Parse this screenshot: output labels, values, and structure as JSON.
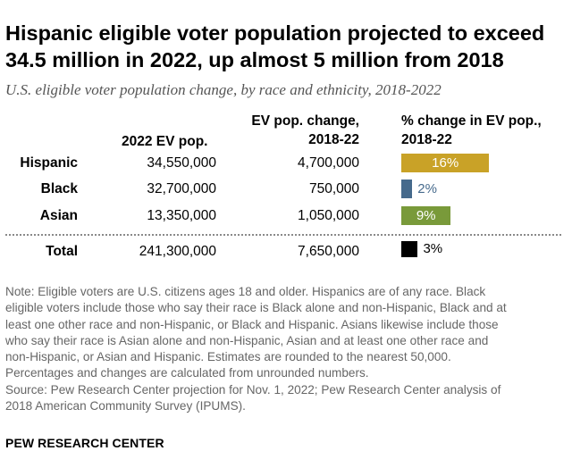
{
  "title_line1": "Hispanic eligible voter population projected to exceed",
  "title_line2": "34.5 million in 2022, up almost 5 million from 2018",
  "subtitle": "U.S. eligible voter population change, by race and ethnicity, 2018-2022",
  "headers": {
    "pop": "2022 EV pop.",
    "change_l1": "EV pop. change,",
    "change_l2": "2018-22",
    "pct_l1": "% change in EV pop.,",
    "pct_l2": "2018-22"
  },
  "chart_data": {
    "type": "table",
    "title": "Hispanic eligible voter population projected to exceed 34.5 million in 2022, up almost 5 million from 2018",
    "subtitle": "U.S. eligible voter population change, by race and ethnicity, 2018-2022",
    "columns": [
      "2022 EV pop.",
      "EV pop. change, 2018-22",
      "% change in EV pop., 2018-22"
    ],
    "rows": [
      {
        "label": "Hispanic",
        "pop": "34,550,000",
        "change": "4,700,000",
        "pct": 16,
        "pct_label": "16%",
        "color": "#c9a227",
        "label_color": "#ffffff",
        "label_inside": true
      },
      {
        "label": "Black",
        "pop": "32,700,000",
        "change": "750,000",
        "pct": 2,
        "pct_label": "2%",
        "color": "#466a8c",
        "label_color": "#466a8c",
        "label_inside": false
      },
      {
        "label": "Asian",
        "pop": "13,350,000",
        "change": "1,050,000",
        "pct": 9,
        "pct_label": "9%",
        "color": "#799a3a",
        "label_color": "#ffffff",
        "label_inside": true
      },
      {
        "label": "Total",
        "pop": "241,300,000",
        "change": "7,650,000",
        "pct": 3,
        "pct_label": "3%",
        "color": "#000000",
        "label_color": "#000000",
        "label_inside": false
      }
    ]
  },
  "note_lines": [
    "Note: Eligible voters are U.S. citizens ages 18 and older. Hispanics are of any race. Black",
    "eligible voters include those who say their race is Black alone and non-Hispanic, Black and at",
    "least one other race and non-Hispanic, or Black and Hispanic. Asians likewise include those",
    "who say their race is Asian alone and non-Hispanic, Asian and at least one other race and",
    "non-Hispanic, or Asian and Hispanic. Estimates are rounded to the nearest 50,000.",
    "Percentages and changes are calculated from unrounded numbers.",
    "Source: Pew Research Center projection for Nov. 1, 2022; Pew Research Center analysis of",
    "2018 American Community Survey (IPUMS)."
  ],
  "brand": "PEW RESEARCH CENTER"
}
